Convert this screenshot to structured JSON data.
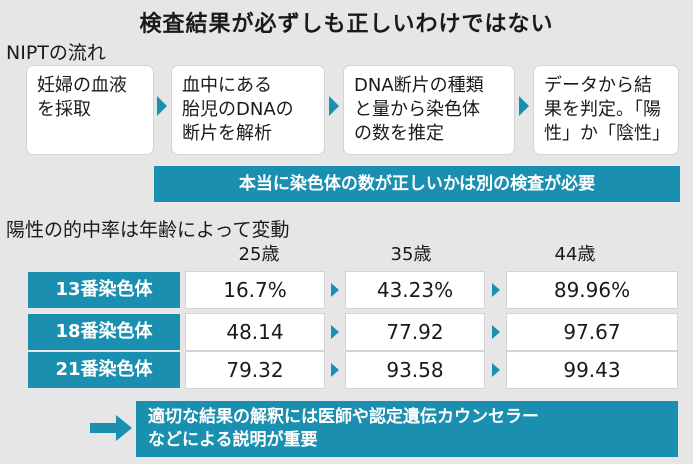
{
  "title": "検査結果が必ずしも正しいわけではない",
  "flow": {
    "heading": "NIPTの流れ",
    "steps": [
      [
        "妊婦の血液",
        "を採取"
      ],
      [
        "血中にある",
        "胎児のDNAの",
        "断片を解析"
      ],
      [
        "DNA断片の種類",
        "と量から染色体",
        "の数を推定"
      ],
      [
        "データから結",
        "果を判定。「陽",
        "性」か「陰性」"
      ]
    ],
    "note": "本当に染色体の数が正しいかは別の検査が必要"
  },
  "rates": {
    "heading": "陽性の的中率は年齢によって変動",
    "ages": [
      "25歳",
      "35歳",
      "44歳"
    ],
    "rows": [
      {
        "label": "13番染色体",
        "values": [
          "16.7%",
          "43.23%",
          "89.96%"
        ]
      },
      {
        "label": "18番染色体",
        "values": [
          "48.14",
          "77.92",
          "97.67"
        ]
      },
      {
        "label": "21番染色体",
        "values": [
          "79.32",
          "93.58",
          "99.43"
        ]
      }
    ]
  },
  "conclusion": [
    "適切な結果の解釈には医師や認定遺伝カウンセラー",
    "などによる説明が重要"
  ],
  "colors": {
    "accent": "#1a8fb0",
    "background": "#e6e6e6"
  }
}
